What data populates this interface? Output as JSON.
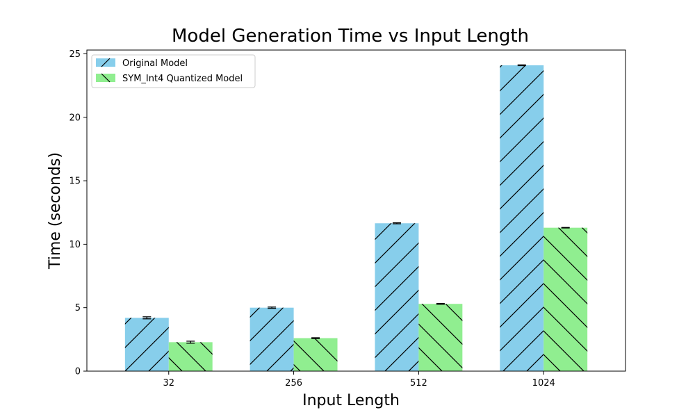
{
  "chart_data": {
    "type": "bar",
    "title": "Model Generation Time vs Input Length",
    "xlabel": "Input Length",
    "ylabel": "Time (seconds)",
    "categories": [
      "32",
      "256",
      "512",
      "1024"
    ],
    "ylim": [
      0,
      25.3
    ],
    "yticks": [
      0,
      5,
      10,
      15,
      20,
      25
    ],
    "grid": false,
    "legend_position": "top-left",
    "series": [
      {
        "name": "Original Model",
        "values": [
          4.2,
          5.0,
          11.65,
          24.1
        ],
        "errors": [
          0.08,
          0.05,
          0.04,
          0.03
        ],
        "color": "#87ceeb",
        "hatch": "/"
      },
      {
        "name": "SYM_Int4 Quantized Model",
        "values": [
          2.28,
          2.6,
          5.3,
          11.3
        ],
        "errors": [
          0.08,
          0.03,
          0.03,
          0.02
        ],
        "color": "#90ee90",
        "hatch": "\\"
      }
    ]
  }
}
